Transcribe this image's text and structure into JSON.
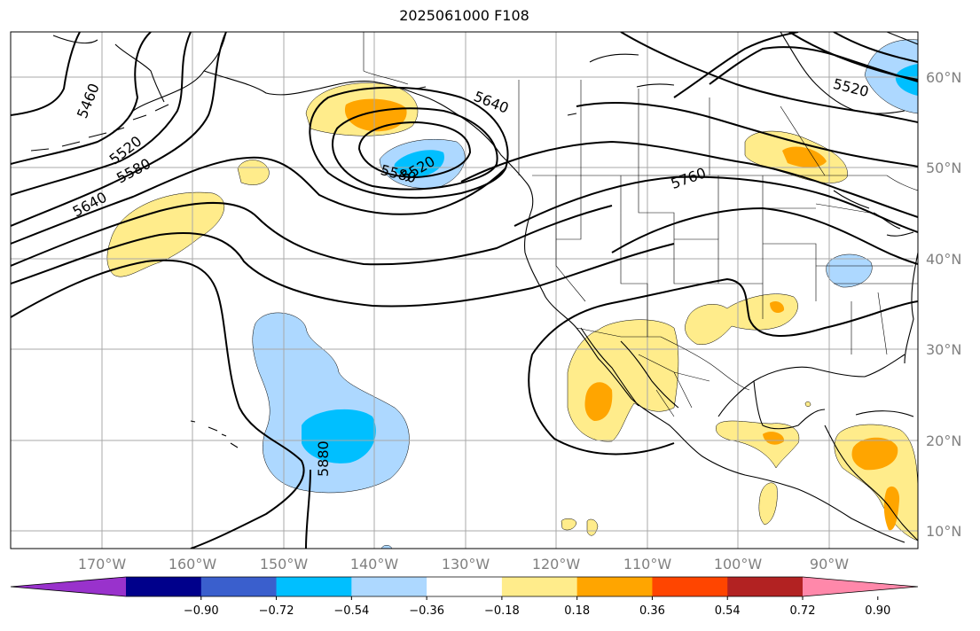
{
  "title": "2025061000 F108",
  "map": {
    "lon_labels": [
      "170°W",
      "160°W",
      "150°W",
      "140°W",
      "130°W",
      "120°W",
      "110°W",
      "100°W",
      "90°W"
    ],
    "lat_labels": [
      "60°N",
      "50°N",
      "40°N",
      "30°N",
      "20°N",
      "10°N"
    ],
    "contour_labels": [
      "5460",
      "5520",
      "5580",
      "5640",
      "5640",
      "5580",
      "5520",
      "5760",
      "5520",
      "5880"
    ]
  },
  "colorbar": {
    "colors": [
      "#9932cc",
      "#00008b",
      "#3a5fcd",
      "#00bfff",
      "#add8ff",
      "#ffffff",
      "#ffec8b",
      "#ffa500",
      "#ff4500",
      "#b22222",
      "#ff88aa"
    ],
    "tick_labels": [
      "−0.90",
      "−0.72",
      "−0.54",
      "−0.36",
      "−0.18",
      "0.18",
      "0.36",
      "0.54",
      "0.72",
      "0.90"
    ]
  }
}
